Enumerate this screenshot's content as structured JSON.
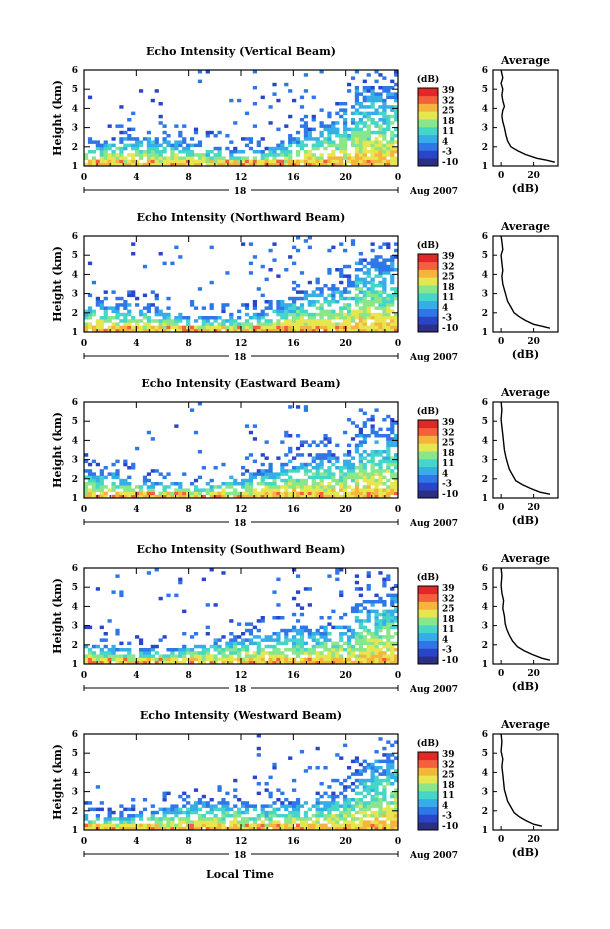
{
  "figure": {
    "xlabel": "Local Time",
    "date_label": "Aug 2007",
    "day_label": "18"
  },
  "colormap": {
    "unit": "(dB)",
    "ticks": [
      "-10",
      "-3",
      "4",
      "11",
      "18",
      "25",
      "32",
      "39"
    ],
    "range": [
      -10,
      39
    ],
    "colors": [
      "#2b2f86",
      "#2a46c8",
      "#2f77e6",
      "#35aee8",
      "#45d6c8",
      "#8ae68a",
      "#e6e650",
      "#f5b43c",
      "#f5603c",
      "#e02828"
    ]
  },
  "chart_data": [
    {
      "type": "heatmap",
      "title": "Echo Intensity (Vertical Beam)",
      "ylabel": "Height (km)",
      "xlim": [
        0,
        24
      ],
      "ylim": [
        1,
        6
      ],
      "xticks": [
        "0",
        "4",
        "8",
        "12",
        "16",
        "20",
        "0"
      ],
      "yticks": [
        "1",
        "2",
        "3",
        "4",
        "5",
        "6"
      ],
      "colorbar_label": "(dB)",
      "colorbar_ticks": [
        "-10",
        "-3",
        "4",
        "11",
        "18",
        "25",
        "32",
        "39"
      ],
      "profile": {
        "title": "Average",
        "xlabel": "(dB)",
        "ylabel": "",
        "xticks": [
          "0",
          "20"
        ],
        "xlim": [
          -5,
          35
        ],
        "ylim": [
          1,
          6
        ],
        "x": [
          33,
          28,
          22,
          15,
          10,
          6,
          4,
          3,
          2,
          1,
          0.5,
          1,
          2,
          1,
          0.5,
          1,
          0,
          1,
          0.5,
          0
        ],
        "y": [
          1.2,
          1.3,
          1.4,
          1.6,
          1.8,
          2.0,
          2.3,
          2.6,
          3.0,
          3.3,
          3.6,
          3.9,
          4.1,
          4.4,
          4.7,
          5.0,
          5.3,
          5.6,
          5.8,
          6.0
        ]
      }
    },
    {
      "type": "heatmap",
      "title": "Echo Intensity (Northward Beam)",
      "ylabel": "Height (km)",
      "xlim": [
        0,
        24
      ],
      "ylim": [
        1,
        6
      ],
      "xticks": [
        "0",
        "4",
        "8",
        "12",
        "16",
        "20",
        "0"
      ],
      "yticks": [
        "1",
        "2",
        "3",
        "4",
        "5",
        "6"
      ],
      "colorbar_label": "(dB)",
      "colorbar_ticks": [
        "-10",
        "-3",
        "4",
        "11",
        "18",
        "25",
        "32",
        "39"
      ],
      "profile": {
        "title": "Average",
        "xlabel": "(dB)",
        "ylabel": "",
        "xticks": [
          "0",
          "20"
        ],
        "xlim": [
          -5,
          35
        ],
        "ylim": [
          1,
          6
        ],
        "x": [
          30,
          25,
          20,
          15,
          11,
          8,
          6,
          4,
          3,
          2,
          1,
          0.5,
          1,
          0.5,
          0,
          1,
          0.5,
          0
        ],
        "y": [
          1.2,
          1.3,
          1.4,
          1.6,
          1.8,
          2.0,
          2.3,
          2.6,
          2.9,
          3.2,
          3.5,
          3.9,
          4.2,
          4.6,
          5.0,
          5.3,
          5.7,
          6.0
        ]
      }
    },
    {
      "type": "heatmap",
      "title": "Echo Intensity (Eastward Beam)",
      "ylabel": "Height (km)",
      "xlim": [
        0,
        24
      ],
      "ylim": [
        1,
        6
      ],
      "xticks": [
        "0",
        "4",
        "8",
        "12",
        "16",
        "20",
        "0"
      ],
      "yticks": [
        "1",
        "2",
        "3",
        "4",
        "5",
        "6"
      ],
      "colorbar_label": "(dB)",
      "colorbar_ticks": [
        "-10",
        "-3",
        "4",
        "11",
        "18",
        "25",
        "32",
        "39"
      ],
      "profile": {
        "title": "Average",
        "xlabel": "(dB)",
        "ylabel": "",
        "xticks": [
          "0",
          "20"
        ],
        "xlim": [
          -5,
          35
        ],
        "ylim": [
          1,
          6
        ],
        "x": [
          30,
          24,
          18,
          13,
          9,
          7,
          5,
          4,
          3,
          2,
          1.5,
          1,
          0.5,
          0,
          0.5,
          0
        ],
        "y": [
          1.2,
          1.3,
          1.5,
          1.7,
          1.9,
          2.2,
          2.5,
          2.8,
          3.1,
          3.5,
          3.9,
          4.3,
          4.7,
          5.1,
          5.6,
          6.0
        ]
      }
    },
    {
      "type": "heatmap",
      "title": "Echo Intensity (Southward Beam)",
      "ylabel": "Height (km)",
      "xlim": [
        0,
        24
      ],
      "ylim": [
        1,
        6
      ],
      "xticks": [
        "0",
        "4",
        "8",
        "12",
        "16",
        "20",
        "0"
      ],
      "yticks": [
        "1",
        "2",
        "3",
        "4",
        "5",
        "6"
      ],
      "colorbar_label": "(dB)",
      "colorbar_ticks": [
        "-10",
        "-3",
        "4",
        "11",
        "18",
        "25",
        "32",
        "39"
      ],
      "profile": {
        "title": "Average",
        "xlabel": "(dB)",
        "ylabel": "",
        "xticks": [
          "0",
          "20"
        ],
        "xlim": [
          -5,
          35
        ],
        "ylim": [
          1,
          6
        ],
        "x": [
          30,
          25,
          19,
          14,
          10,
          7,
          5,
          3.5,
          2.5,
          2,
          1,
          1.5,
          0.5,
          0,
          0.5,
          0
        ],
        "y": [
          1.2,
          1.3,
          1.5,
          1.7,
          1.9,
          2.2,
          2.5,
          2.8,
          3.1,
          3.5,
          3.9,
          4.3,
          4.7,
          5.1,
          5.6,
          6.0
        ]
      }
    },
    {
      "type": "heatmap",
      "title": "Echo Intensity (Westward Beam)",
      "ylabel": "Height (km)",
      "xlim": [
        0,
        24
      ],
      "ylim": [
        1,
        6
      ],
      "xticks": [
        "0",
        "4",
        "8",
        "12",
        "16",
        "20",
        "0"
      ],
      "yticks": [
        "1",
        "2",
        "3",
        "4",
        "5",
        "6"
      ],
      "colorbar_label": "(dB)",
      "colorbar_ticks": [
        "-10",
        "-3",
        "4",
        "11",
        "18",
        "25",
        "32",
        "39"
      ],
      "profile": {
        "title": "Average",
        "xlabel": "(dB)",
        "ylabel": "",
        "xticks": [
          "0",
          "20"
        ],
        "xlim": [
          -5,
          35
        ],
        "ylim": [
          1,
          6
        ],
        "x": [
          25,
          20,
          15,
          11,
          8,
          6,
          4,
          3,
          2,
          1.5,
          1,
          0.5,
          1,
          0,
          0.5,
          0
        ],
        "y": [
          1.2,
          1.3,
          1.5,
          1.7,
          1.9,
          2.2,
          2.5,
          2.8,
          3.1,
          3.5,
          3.9,
          4.3,
          4.7,
          5.1,
          5.6,
          6.0
        ]
      }
    }
  ]
}
